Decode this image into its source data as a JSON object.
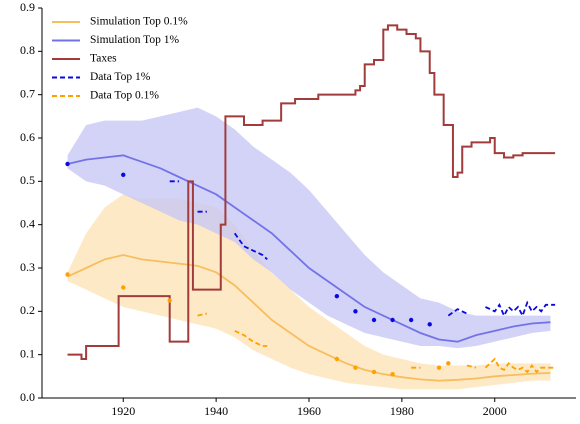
{
  "chart_data": {
    "type": "line",
    "xlim": [
      1902.5,
      2017.5
    ],
    "ylim": [
      0,
      0.9
    ],
    "xticks": [
      1920,
      1940,
      1960,
      1980,
      2000
    ],
    "yticks": [
      {
        "value": 0,
        "label": "0.0"
      },
      0.1,
      0.2,
      0.3,
      0.4,
      0.5,
      0.6,
      0.7,
      0.8,
      0.9
    ],
    "legend": "upper left",
    "series": [
      {
        "name": "Simulation Top 0.1%",
        "color": "#f7be5e",
        "band_color": "#fde2b4",
        "style": "solid",
        "x": [
          1908,
          1912,
          1916,
          1920,
          1924,
          1928,
          1932,
          1936,
          1940,
          1944,
          1948,
          1952,
          1956,
          1960,
          1964,
          1968,
          1972,
          1976,
          1980,
          1984,
          1988,
          1992,
          1996,
          2000,
          2004,
          2008,
          2012
        ],
        "values": [
          0.28,
          0.3,
          0.32,
          0.33,
          0.32,
          0.315,
          0.31,
          0.305,
          0.29,
          0.26,
          0.22,
          0.18,
          0.15,
          0.12,
          0.1,
          0.08,
          0.065,
          0.055,
          0.048,
          0.043,
          0.04,
          0.042,
          0.045,
          0.05,
          0.053,
          0.056,
          0.058
        ],
        "upper": [
          0.29,
          0.38,
          0.44,
          0.47,
          0.46,
          0.46,
          0.46,
          0.45,
          0.44,
          0.4,
          0.34,
          0.29,
          0.25,
          0.21,
          0.18,
          0.15,
          0.12,
          0.1,
          0.09,
          0.08,
          0.075,
          0.075,
          0.075,
          0.08,
          0.08,
          0.08,
          0.08
        ],
        "lower": [
          0.27,
          0.25,
          0.23,
          0.21,
          0.2,
          0.19,
          0.18,
          0.17,
          0.16,
          0.14,
          0.11,
          0.09,
          0.07,
          0.055,
          0.045,
          0.035,
          0.03,
          0.025,
          0.02,
          0.02,
          0.02,
          0.02,
          0.025,
          0.03,
          0.035,
          0.04,
          0.04
        ]
      },
      {
        "name": "Simulation Top 1%",
        "color": "#7373e8",
        "band_color": "#c4c4f6",
        "style": "solid",
        "x": [
          1908,
          1912,
          1916,
          1920,
          1924,
          1928,
          1932,
          1936,
          1940,
          1944,
          1948,
          1952,
          1956,
          1960,
          1964,
          1968,
          1972,
          1976,
          1980,
          1984,
          1988,
          1992,
          1996,
          2000,
          2004,
          2008,
          2012
        ],
        "values": [
          0.54,
          0.55,
          0.555,
          0.56,
          0.545,
          0.53,
          0.51,
          0.49,
          0.47,
          0.44,
          0.41,
          0.38,
          0.34,
          0.3,
          0.27,
          0.24,
          0.21,
          0.19,
          0.17,
          0.15,
          0.135,
          0.13,
          0.145,
          0.155,
          0.165,
          0.172,
          0.175
        ],
        "upper": [
          0.56,
          0.63,
          0.64,
          0.64,
          0.64,
          0.65,
          0.66,
          0.67,
          0.65,
          0.62,
          0.58,
          0.55,
          0.52,
          0.48,
          0.43,
          0.38,
          0.33,
          0.29,
          0.26,
          0.23,
          0.22,
          0.2,
          0.19,
          0.19,
          0.19,
          0.19,
          0.19
        ],
        "lower": [
          0.53,
          0.5,
          0.49,
          0.47,
          0.45,
          0.43,
          0.41,
          0.4,
          0.38,
          0.36,
          0.32,
          0.29,
          0.25,
          0.22,
          0.19,
          0.17,
          0.15,
          0.14,
          0.13,
          0.12,
          0.12,
          0.115,
          0.12,
          0.13,
          0.14,
          0.15,
          0.155
        ]
      },
      {
        "name": "Taxes",
        "color": "#a23b3b",
        "style": "step",
        "x": [
          1908,
          1911,
          1912,
          1917,
          1919,
          1930,
          1934,
          1935,
          1941,
          1942,
          1946,
          1950,
          1953,
          1954,
          1957,
          1962,
          1965,
          1970,
          1971,
          1972,
          1974,
          1976,
          1977,
          1979,
          1981,
          1983,
          1984,
          1986,
          1987,
          1989,
          1991,
          1992,
          1993,
          1995,
          1999,
          2000,
          2002,
          2004,
          2006,
          2013
        ],
        "values": [
          0.1,
          0.09,
          0.12,
          0.12,
          0.235,
          0.13,
          0.5,
          0.25,
          0.4,
          0.65,
          0.63,
          0.64,
          0.64,
          0.68,
          0.69,
          0.7,
          0.7,
          0.71,
          0.72,
          0.77,
          0.78,
          0.85,
          0.86,
          0.85,
          0.84,
          0.83,
          0.8,
          0.75,
          0.7,
          0.63,
          0.51,
          0.52,
          0.58,
          0.59,
          0.6,
          0.565,
          0.555,
          0.56,
          0.565,
          0.565
        ]
      },
      {
        "name": "Data Top 1%",
        "color": "#0a0ae0",
        "style": "dashed",
        "x": [
          1908,
          1914,
          1920,
          1925,
          1930,
          1932,
          1934,
          1936,
          1938,
          1941,
          1944,
          1946,
          1948,
          1950,
          1951,
          1958,
          1966,
          1968,
          1970,
          1972,
          1974,
          1976,
          1978,
          1980,
          1982,
          1984,
          1986,
          1988,
          1990,
          1992,
          1994,
          1996,
          1998,
          2000,
          2001,
          2002,
          2003,
          2004,
          2005,
          2006,
          2007,
          2008,
          2009,
          2010,
          2011,
          2012,
          2013
        ],
        "values": [
          0.54,
          null,
          0.515,
          null,
          0.5,
          0.5,
          null,
          0.43,
          0.43,
          null,
          0.38,
          0.35,
          0.34,
          0.33,
          0.32,
          null,
          0.235,
          null,
          0.2,
          null,
          0.18,
          null,
          0.18,
          null,
          0.18,
          null,
          0.17,
          null,
          0.19,
          0.205,
          0.195,
          null,
          0.21,
          0.2,
          0.215,
          0.19,
          0.21,
          0.2,
          0.21,
          0.19,
          0.22,
          0.2,
          0.21,
          0.2,
          0.215,
          0.215,
          0.215
        ]
      },
      {
        "name": "Data Top 0.1%",
        "color": "#ffa000",
        "style": "dashed",
        "x": [
          1908,
          1914,
          1920,
          1925,
          1930,
          1933,
          1936,
          1938,
          1941,
          1944,
          1946,
          1948,
          1950,
          1951,
          1958,
          1966,
          1968,
          1970,
          1972,
          1974,
          1976,
          1978,
          1980,
          1982,
          1984,
          1986,
          1988,
          1989,
          1990,
          1992,
          1994,
          1996,
          1997,
          1998,
          2000,
          2001,
          2002,
          2003,
          2004,
          2005,
          2006,
          2007,
          2008,
          2009,
          2010,
          2011,
          2012,
          2013
        ],
        "values": [
          0.285,
          null,
          0.255,
          null,
          0.225,
          null,
          0.19,
          0.195,
          null,
          0.155,
          0.145,
          0.13,
          0.12,
          0.12,
          null,
          0.09,
          null,
          0.07,
          null,
          0.06,
          null,
          0.055,
          null,
          0.07,
          0.07,
          null,
          0.07,
          null,
          0.08,
          null,
          0.075,
          0.07,
          null,
          0.07,
          0.09,
          0.07,
          0.065,
          0.08,
          0.07,
          0.065,
          0.07,
          0.06,
          0.075,
          0.06,
          0.07,
          0.07,
          0.07,
          0.07
        ]
      }
    ]
  }
}
